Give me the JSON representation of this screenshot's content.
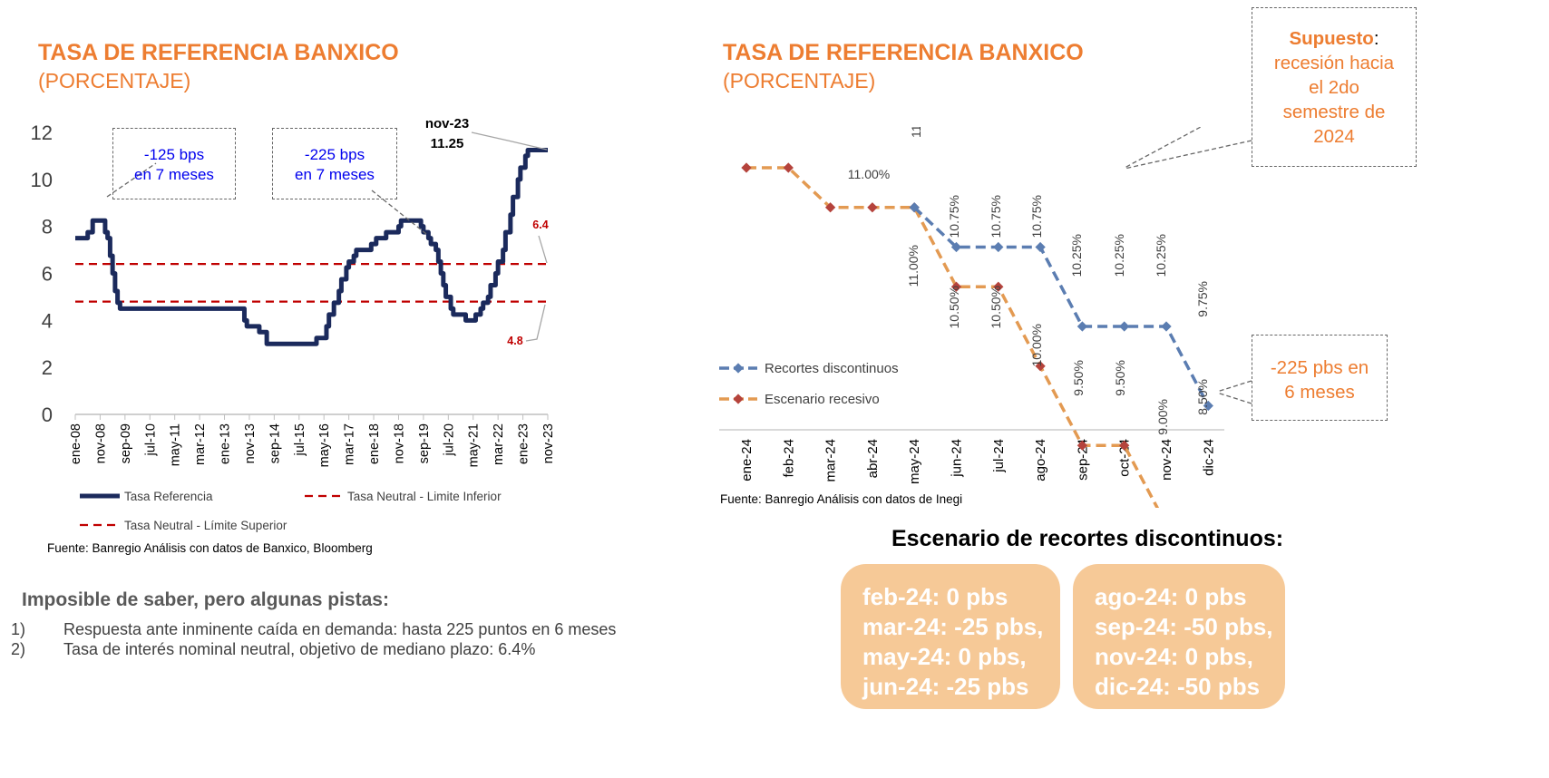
{
  "colors": {
    "orange": "#ED7D31",
    "navy": "#1B2A5C",
    "red": "#C00000",
    "blue_text": "#0000EE",
    "blue_series": "#5B7DB1",
    "orange_series": "#E39A52",
    "pill": "#F6C997",
    "dot_red": "#B5433C"
  },
  "left": {
    "title": "TASA DE REFERENCIA BANXICO",
    "subtitle": "(PORCENTAJE)",
    "source": "Fuente: Banregio Análisis con datos de Banxico, Bloomberg",
    "callout1_line1": "-125 bps",
    "callout1_line2": "en 7 meses",
    "callout2_line1": "-225 bps",
    "callout2_line2": "en 7 meses",
    "last_label_date": "nov-23",
    "last_label_value": "11.25",
    "upper_label": "6.4",
    "lower_label": "4.8"
  },
  "right": {
    "title": "TASA DE REFERENCIA BANXICO",
    "subtitle": "(PORCENTAJE)",
    "source": "Fuente: Banregio Análisis con datos de Inegi",
    "assumption_bold": "Supuesto",
    "assumption_rest": ":",
    "assumption_lines": [
      "recesión hacia",
      "el 2do",
      "semestre de",
      "2024"
    ],
    "cut_line1": "-225 pbs en",
    "cut_line2": "6 meses"
  },
  "notes": {
    "heading": "Imposible de saber, pero algunas pistas:",
    "items": [
      {
        "num": "1)",
        "text": "Respuesta ante inminente caída en demanda: hasta 225 puntos en 6 meses"
      },
      {
        "num": "2)",
        "text": "Tasa de interés nominal neutral, objetivo de mediano plazo: 6.4%"
      }
    ]
  },
  "scenario": {
    "heading": "Escenario de recortes discontinuos:",
    "left_lines": [
      "feb-24: 0 pbs",
      "mar-24: -25 pbs,",
      "may-24: 0 pbs,",
      "jun-24: -25 pbs"
    ],
    "right_lines": [
      "ago-24: 0 pbs",
      "sep-24: -50 pbs,",
      "nov-24: 0 pbs,",
      "dic-24: -50 pbs"
    ]
  },
  "chart_data": [
    {
      "type": "line",
      "title": "TASA DE REFERENCIA BANXICO",
      "subtitle": "(PORCENTAJE)",
      "ylim": [
        0,
        12
      ],
      "yticks": [
        0,
        2,
        4,
        6,
        8,
        10,
        12
      ],
      "xtick_labels": [
        "ene-08",
        "nov-08",
        "sep-09",
        "jul-10",
        "may-11",
        "mar-12",
        "ene-13",
        "nov-13",
        "sep-14",
        "jul-15",
        "may-16",
        "mar-17",
        "ene-18",
        "nov-18",
        "sep-19",
        "jul-20",
        "may-21",
        "mar-22",
        "ene-23",
        "nov-23"
      ],
      "grid": false,
      "legend": "bottom",
      "series": [
        {
          "name": "Tasa Referencia",
          "x": [
            "ene-08",
            "jun-08",
            "ago-08",
            "oct-08",
            "dic-08",
            "ene-09",
            "feb-09",
            "mar-09",
            "abr-09",
            "may-09",
            "jun-09",
            "jul-09",
            "jun-13",
            "sep-13",
            "oct-13",
            "mar-14",
            "jun-14",
            "dic-15",
            "feb-16",
            "jun-16",
            "jul-16",
            "sep-16",
            "nov-16",
            "dic-16",
            "feb-17",
            "mar-17",
            "may-17",
            "jun-17",
            "dic-17",
            "feb-18",
            "jun-18",
            "nov-18",
            "dic-18",
            "jul-19",
            "ago-19",
            "sep-19",
            "nov-19",
            "dic-19",
            "feb-20",
            "mar-20",
            "abr-20",
            "may-20",
            "jun-20",
            "ago-20",
            "sep-20",
            "feb-21",
            "jun-21",
            "ago-21",
            "sep-21",
            "nov-21",
            "dic-21",
            "feb-22",
            "mar-22",
            "may-22",
            "jun-22",
            "ago-22",
            "sep-22",
            "nov-22",
            "dic-22",
            "feb-23",
            "mar-23",
            "nov-23"
          ],
          "values": [
            7.5,
            7.75,
            8.25,
            8.25,
            8.25,
            7.75,
            7.5,
            6.75,
            6.0,
            5.25,
            4.75,
            4.5,
            4.5,
            4.0,
            3.75,
            3.5,
            3.0,
            3.0,
            3.25,
            3.75,
            4.25,
            4.75,
            5.25,
            5.75,
            6.25,
            6.5,
            6.75,
            7.0,
            7.25,
            7.5,
            7.75,
            8.0,
            8.25,
            8.25,
            8.0,
            7.75,
            7.5,
            7.25,
            7.0,
            6.5,
            6.0,
            5.5,
            5.0,
            4.5,
            4.25,
            4.0,
            4.25,
            4.5,
            4.75,
            5.0,
            5.5,
            6.0,
            6.5,
            7.0,
            7.75,
            8.5,
            9.25,
            10.0,
            10.5,
            11.0,
            11.25,
            11.25
          ]
        },
        {
          "name": "Tasa Neutral - Limite Inferior",
          "value": 4.8
        },
        {
          "name": "Tasa Neutral - Límite Superior",
          "value": 6.4
        }
      ],
      "annotations": [
        "-125 bps en 7 meses",
        "-225 bps en 7 meses",
        "nov-23 11.25",
        "6.4",
        "4.8"
      ]
    },
    {
      "type": "line",
      "title": "TASA DE REFERENCIA BANXICO",
      "subtitle": "(PORCENTAJE)",
      "categories": [
        "ene-24",
        "feb-24",
        "mar-24",
        "abr-24",
        "may-24",
        "jun-24",
        "jul-24",
        "ago-24",
        "sep-24",
        "oct-24",
        "nov-24",
        "dic-24"
      ],
      "grid": false,
      "legend": "left",
      "series": [
        {
          "name": "Recortes discontinuos",
          "values": [
            null,
            null,
            null,
            null,
            11.0,
            10.75,
            10.75,
            10.75,
            10.25,
            10.25,
            10.25,
            9.75
          ],
          "labels": [
            "",
            "",
            "",
            "",
            "11.00%",
            "10.75%",
            "10.75%",
            "10.75%",
            "10.25%",
            "10.25%",
            "10.25%",
            "9.75%"
          ]
        },
        {
          "name": "Escenario recesivo",
          "values": [
            11.25,
            11.25,
            11.0,
            11.0,
            11.0,
            10.5,
            10.5,
            10.0,
            9.5,
            9.5,
            9.0,
            8.5
          ],
          "labels": [
            "",
            "",
            "",
            "11.00%",
            "11.00%",
            "10.50%",
            "10.50%",
            "10.00%",
            "9.50%",
            "9.50%",
            "9.00%",
            "8.50%"
          ]
        }
      ]
    }
  ]
}
